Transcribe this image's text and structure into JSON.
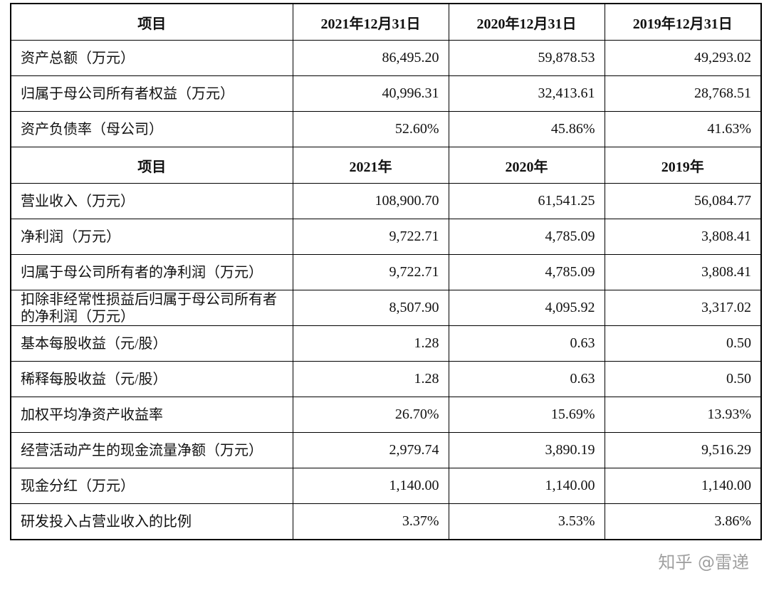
{
  "table": {
    "sections": [
      {
        "header": [
          "项目",
          "2021年12月31日",
          "2020年12月31日",
          "2019年12月31日"
        ],
        "rows": [
          [
            "资产总额（万元）",
            "86,495.20",
            "59,878.53",
            "49,293.02"
          ],
          [
            "归属于母公司所有者权益（万元）",
            "40,996.31",
            "32,413.61",
            "28,768.51"
          ],
          [
            "资产负债率（母公司）",
            "52.60%",
            "45.86%",
            "41.63%"
          ]
        ]
      },
      {
        "header": [
          "项目",
          "2021年",
          "2020年",
          "2019年"
        ],
        "rows": [
          [
            "营业收入（万元）",
            "108,900.70",
            "61,541.25",
            "56,084.77"
          ],
          [
            "净利润（万元）",
            "9,722.71",
            "4,785.09",
            "3,808.41"
          ],
          [
            "归属于母公司所有者的净利润（万元）",
            "9,722.71",
            "4,785.09",
            "3,808.41"
          ],
          [
            "扣除非经常性损益后归属于母公司所有者的净利润（万元）",
            "8,507.90",
            "4,095.92",
            "3,317.02"
          ],
          [
            "基本每股收益（元/股）",
            "1.28",
            "0.63",
            "0.50"
          ],
          [
            "稀释每股收益（元/股）",
            "1.28",
            "0.63",
            "0.50"
          ],
          [
            "加权平均净资产收益率",
            "26.70%",
            "15.69%",
            "13.93%"
          ],
          [
            "经营活动产生的现金流量净额（万元）",
            "2,979.74",
            "3,890.19",
            "9,516.29"
          ],
          [
            "现金分红（万元）",
            "1,140.00",
            "1,140.00",
            "1,140.00"
          ],
          [
            "研发投入占营业收入的比例",
            "3.37%",
            "3.53%",
            "3.86%"
          ]
        ]
      }
    ]
  },
  "watermark": "知乎 @雷递"
}
